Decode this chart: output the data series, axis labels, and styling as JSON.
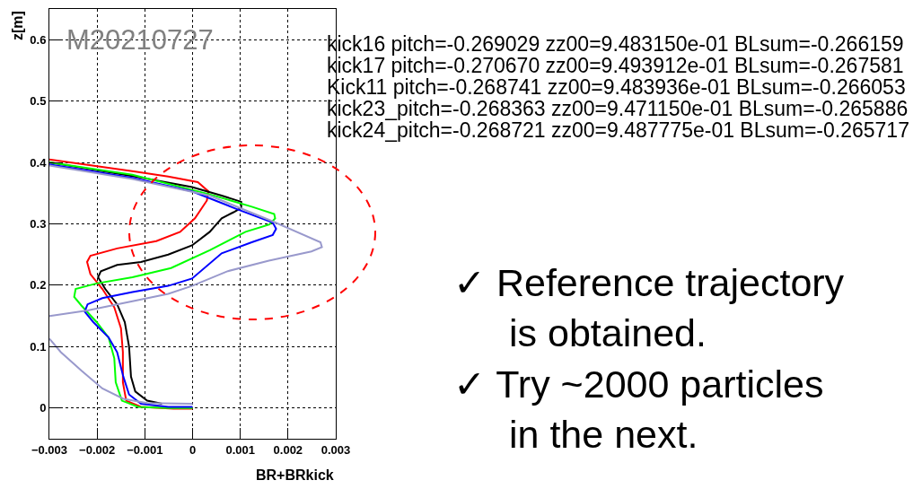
{
  "chart_data": {
    "type": "line",
    "xlabel": "BR+BRkick",
    "ylabel": "z[m]",
    "xlim": [
      -0.003,
      0.003
    ],
    "ylim": [
      -0.05,
      0.65
    ],
    "xticks": [
      {
        "value": -0.003,
        "label": "−0.003"
      },
      {
        "value": -0.002,
        "label": "−0.002"
      },
      {
        "value": -0.001,
        "label": "−0.001"
      },
      0,
      0.001,
      0.002,
      0.003
    ],
    "yticks": [
      0,
      0.1,
      0.2,
      0.3,
      0.4,
      0.5,
      0.6
    ],
    "grid": true,
    "marker": "none",
    "line_style": "solid",
    "series": [
      {
        "color": "#ff0000",
        "x": [
          -0.003,
          -0.0012,
          -0.00051,
          0.00011,
          0.00033,
          0.0003,
          5e-05,
          -0.00026,
          -0.00076,
          -0.00158,
          -0.00214,
          -0.00221,
          -0.00214,
          -0.00189,
          -0.00164,
          -0.0015,
          -0.00146,
          -0.00146,
          -0.00139,
          -0.00108,
          -0.0004,
          0
        ],
        "values": [
          0.405,
          0.385,
          0.377,
          0.368,
          0.353,
          0.338,
          0.309,
          0.287,
          0.272,
          0.26,
          0.248,
          0.238,
          0.218,
          0.194,
          0.164,
          0.13,
          0.091,
          0.042,
          0.012,
          0.002,
          -0.001,
          -0.001
        ]
      },
      {
        "color": "#000000",
        "x": [
          -0.003,
          -0.0012,
          -1e-05,
          0.00061,
          0.00102,
          0.00102,
          0.00086,
          0.00061,
          0.00036,
          -1e-05,
          -0.00051,
          -0.00108,
          -0.00158,
          -0.00192,
          -0.00198,
          -0.00183,
          -0.00158,
          -0.00142,
          -0.00133,
          -0.00129,
          -0.0012,
          -0.00095,
          -0.00064
        ],
        "values": [
          0.4,
          0.377,
          0.36,
          0.346,
          0.336,
          0.326,
          0.319,
          0.309,
          0.287,
          0.265,
          0.25,
          0.238,
          0.233,
          0.223,
          0.213,
          0.194,
          0.169,
          0.14,
          0.1,
          0.051,
          0.027,
          0.012,
          0.007
        ]
      },
      {
        "color": "#00ff00",
        "x": [
          -0.003,
          -0.00126,
          0.00036,
          0.00124,
          0.00171,
          0.00173,
          0.00161,
          0.00111,
          0.00036,
          -0.00045,
          -0.00126,
          -0.00201,
          -0.00245,
          -0.00248,
          -0.00233,
          -0.00201,
          -0.00176,
          -0.00164,
          -0.00161,
          -0.00148,
          -0.00114,
          -0.00051,
          0
        ],
        "values": [
          0.4,
          0.38,
          0.348,
          0.328,
          0.316,
          0.309,
          0.299,
          0.287,
          0.257,
          0.228,
          0.213,
          0.203,
          0.194,
          0.181,
          0.167,
          0.14,
          0.115,
          0.081,
          0.042,
          0.012,
          0.002,
          0,
          0
        ]
      },
      {
        "color": "#0000ff",
        "x": [
          -0.003,
          -0.00126,
          -1e-05,
          0.00093,
          0.00168,
          0.00175,
          0.00168,
          0.00124,
          0.00061,
          -1e-05,
          -0.00051,
          -0.00126,
          -0.00189,
          -0.0022,
          -0.00226,
          -0.00208,
          -0.00176,
          -0.00158,
          -0.00145,
          -0.00133,
          -0.00108,
          -0.00051,
          0
        ],
        "values": [
          0.397,
          0.375,
          0.353,
          0.324,
          0.302,
          0.292,
          0.282,
          0.27,
          0.252,
          0.211,
          0.199,
          0.189,
          0.179,
          0.169,
          0.157,
          0.14,
          0.115,
          0.091,
          0.051,
          0.022,
          0.007,
          0.002,
          0.002
        ]
      },
      {
        "color": "#9999cc",
        "x": [
          -0.003,
          -0.00126,
          0.00036,
          0.00168,
          0.00268,
          0.00271,
          0.00249,
          0.0016,
          0.00074,
          -1e-05,
          -0.00051,
          -0.00126,
          -0.0022,
          -0.003,
          null,
          -0.003,
          -0.00276,
          -0.00233,
          -0.00189,
          -0.00145,
          -0.00095,
          0
        ],
        "values": [
          0.395,
          0.373,
          0.346,
          0.304,
          0.27,
          0.262,
          0.255,
          0.24,
          0.223,
          0.199,
          0.186,
          0.174,
          0.159,
          0.15,
          null,
          0.113,
          0.091,
          0.061,
          0.032,
          0.015,
          0.008,
          0.007
        ]
      }
    ],
    "annotations": [
      "M20210727",
      "kick16 pitch=-0.269029 zz00=9.483150e-01 BLsum=-0.266159",
      "kick17 pitch=-0.270670 zz00=9.493912e-01 BLsum=-0.267581",
      "Kick11 pitch=-0.268741 zz00=9.483936e-01 BLsum=-0.266053",
      "kick23_pitch=-0.268363 zz00=9.471150e-01 BLsum=-0.265886",
      "kick24_pitch=-0.268721 zz00=9.487775e-01 BLsum=-0.265717",
      "✓ Reference trajectory is obtained.",
      "✓ Try ~2000 particles in the next."
    ]
  }
}
